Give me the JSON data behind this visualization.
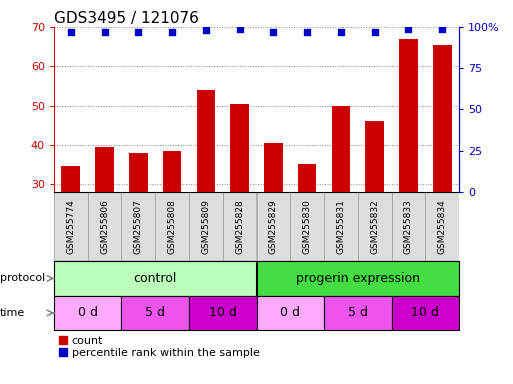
{
  "title": "GDS3495 / 121076",
  "samples": [
    "GSM255774",
    "GSM255806",
    "GSM255807",
    "GSM255808",
    "GSM255809",
    "GSM255828",
    "GSM255829",
    "GSM255830",
    "GSM255831",
    "GSM255832",
    "GSM255833",
    "GSM255834"
  ],
  "counts": [
    34.5,
    39.5,
    38.0,
    38.5,
    54.0,
    50.5,
    40.5,
    35.0,
    50.0,
    46.0,
    67.0,
    65.5
  ],
  "percentile_ranks": [
    97,
    97,
    97,
    97,
    98,
    99,
    97,
    97,
    97,
    97,
    99,
    99
  ],
  "ylim_left": [
    28,
    70
  ],
  "ylim_right": [
    0,
    100
  ],
  "yticks_left": [
    30,
    40,
    50,
    60,
    70
  ],
  "yticks_right": [
    0,
    25,
    50,
    75,
    100
  ],
  "bar_color": "#cc0000",
  "dot_color": "#0000cc",
  "bar_width": 0.55,
  "protocol_labels": [
    "control",
    "progerin expression"
  ],
  "protocol_colors": [
    "#bbffbb",
    "#44dd44"
  ],
  "time_labels": [
    "0 d",
    "5 d",
    "10 d",
    "0 d",
    "5 d",
    "10 d"
  ],
  "time_colors": [
    "#ffaaff",
    "#ee55ee",
    "#cc00cc",
    "#ffaaff",
    "#ee55ee",
    "#cc00cc"
  ],
  "legend_count": "count",
  "legend_pct": "percentile rank within the sample",
  "grid_color": "#888888",
  "bg_color": "#ffffff",
  "sample_box_color": "#dddddd",
  "title_fontsize": 11,
  "tick_fontsize": 8,
  "label_fontsize": 9
}
